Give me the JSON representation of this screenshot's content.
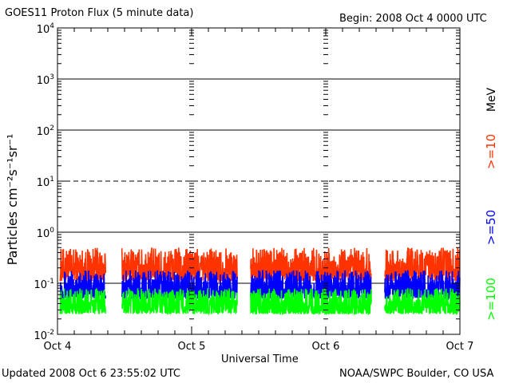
{
  "chart_data": {
    "type": "line",
    "title": "GOES11 Proton Flux (5 minute data)",
    "begin_label": "Begin: 2008 Oct 4 0000 UTC",
    "xlabel": "Universal Time",
    "ylabel": "Particles cm⁻²s⁻¹sr⁻¹",
    "y_scale": "log",
    "ylim": [
      0.01,
      10000
    ],
    "y_ticks": [
      {
        "value": 0.01,
        "base": "10",
        "exp": "-2"
      },
      {
        "value": 0.1,
        "base": "10",
        "exp": "-1"
      },
      {
        "value": 1,
        "base": "10",
        "exp": "0"
      },
      {
        "value": 10,
        "base": "10",
        "exp": "1"
      },
      {
        "value": 100,
        "base": "10",
        "exp": "2"
      },
      {
        "value": 1000,
        "base": "10",
        "exp": "3"
      },
      {
        "value": 10000,
        "base": "10",
        "exp": "4"
      }
    ],
    "x_ticks": [
      "Oct 4",
      "Oct 5",
      "Oct 6",
      "Oct 7"
    ],
    "xlim_days": [
      0,
      3
    ],
    "threshold_lines": [
      {
        "value": 1,
        "style": "solid"
      },
      {
        "value": 10,
        "style": "dashed"
      },
      {
        "value": 100,
        "style": "solid"
      },
      {
        "value": 1000,
        "style": "solid"
      },
      {
        "value": 0.1,
        "style": "solid"
      }
    ],
    "legend_unit": "MeV",
    "series": [
      {
        "name": ">=10",
        "color": "#ff3300",
        "base_value": 0.2,
        "low": 0.11,
        "high": 0.5
      },
      {
        "name": ">=50",
        "color": "#0000ff",
        "base_value": 0.08,
        "low": 0.05,
        "high": 0.18
      },
      {
        "name": ">=100",
        "color": "#00ff00",
        "base_value": 0.035,
        "low": 0.025,
        "high": 0.08
      }
    ],
    "data_gaps_days": [
      [
        0.36,
        0.48
      ],
      [
        1.34,
        1.44
      ],
      [
        2.34,
        2.44
      ]
    ]
  },
  "footer": {
    "updated": "Updated 2008 Oct  6 23:55:02 UTC",
    "source": "NOAA/SWPC Boulder, CO USA"
  }
}
